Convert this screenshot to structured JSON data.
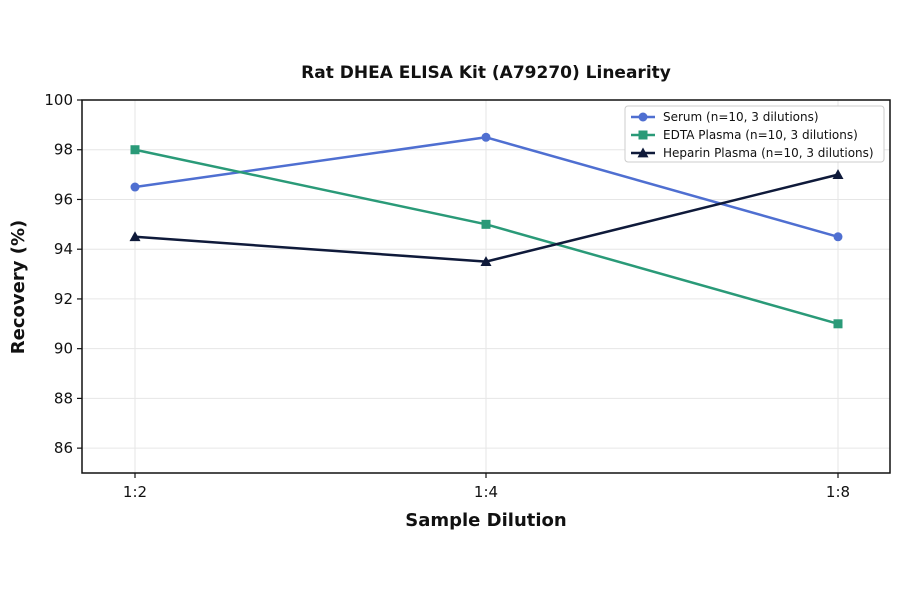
{
  "chart_data": {
    "type": "line",
    "title": "Rat DHEA ELISA Kit (A79270) Linearity",
    "xlabel": "Sample Dilution",
    "ylabel": "Recovery (%)",
    "categories": [
      "1:2",
      "1:4",
      "1:8"
    ],
    "ylim": [
      85,
      100
    ],
    "yticks": [
      86,
      88,
      90,
      92,
      94,
      96,
      98,
      100
    ],
    "grid": true,
    "legend_position": "top-right",
    "series": [
      {
        "name": "Serum (n=10, 3 dilutions)",
        "values": [
          96.5,
          98.5,
          94.5
        ],
        "color": "#4f6fd1",
        "marker": "circle"
      },
      {
        "name": "EDTA Plasma (n=10, 3 dilutions)",
        "values": [
          98.0,
          95.0,
          91.0
        ],
        "color": "#2a9a78",
        "marker": "square"
      },
      {
        "name": "Heparin Plasma (n=10, 3 dilutions)",
        "values": [
          94.5,
          93.5,
          97.0
        ],
        "color": "#0f1a3a",
        "marker": "triangle"
      }
    ]
  }
}
